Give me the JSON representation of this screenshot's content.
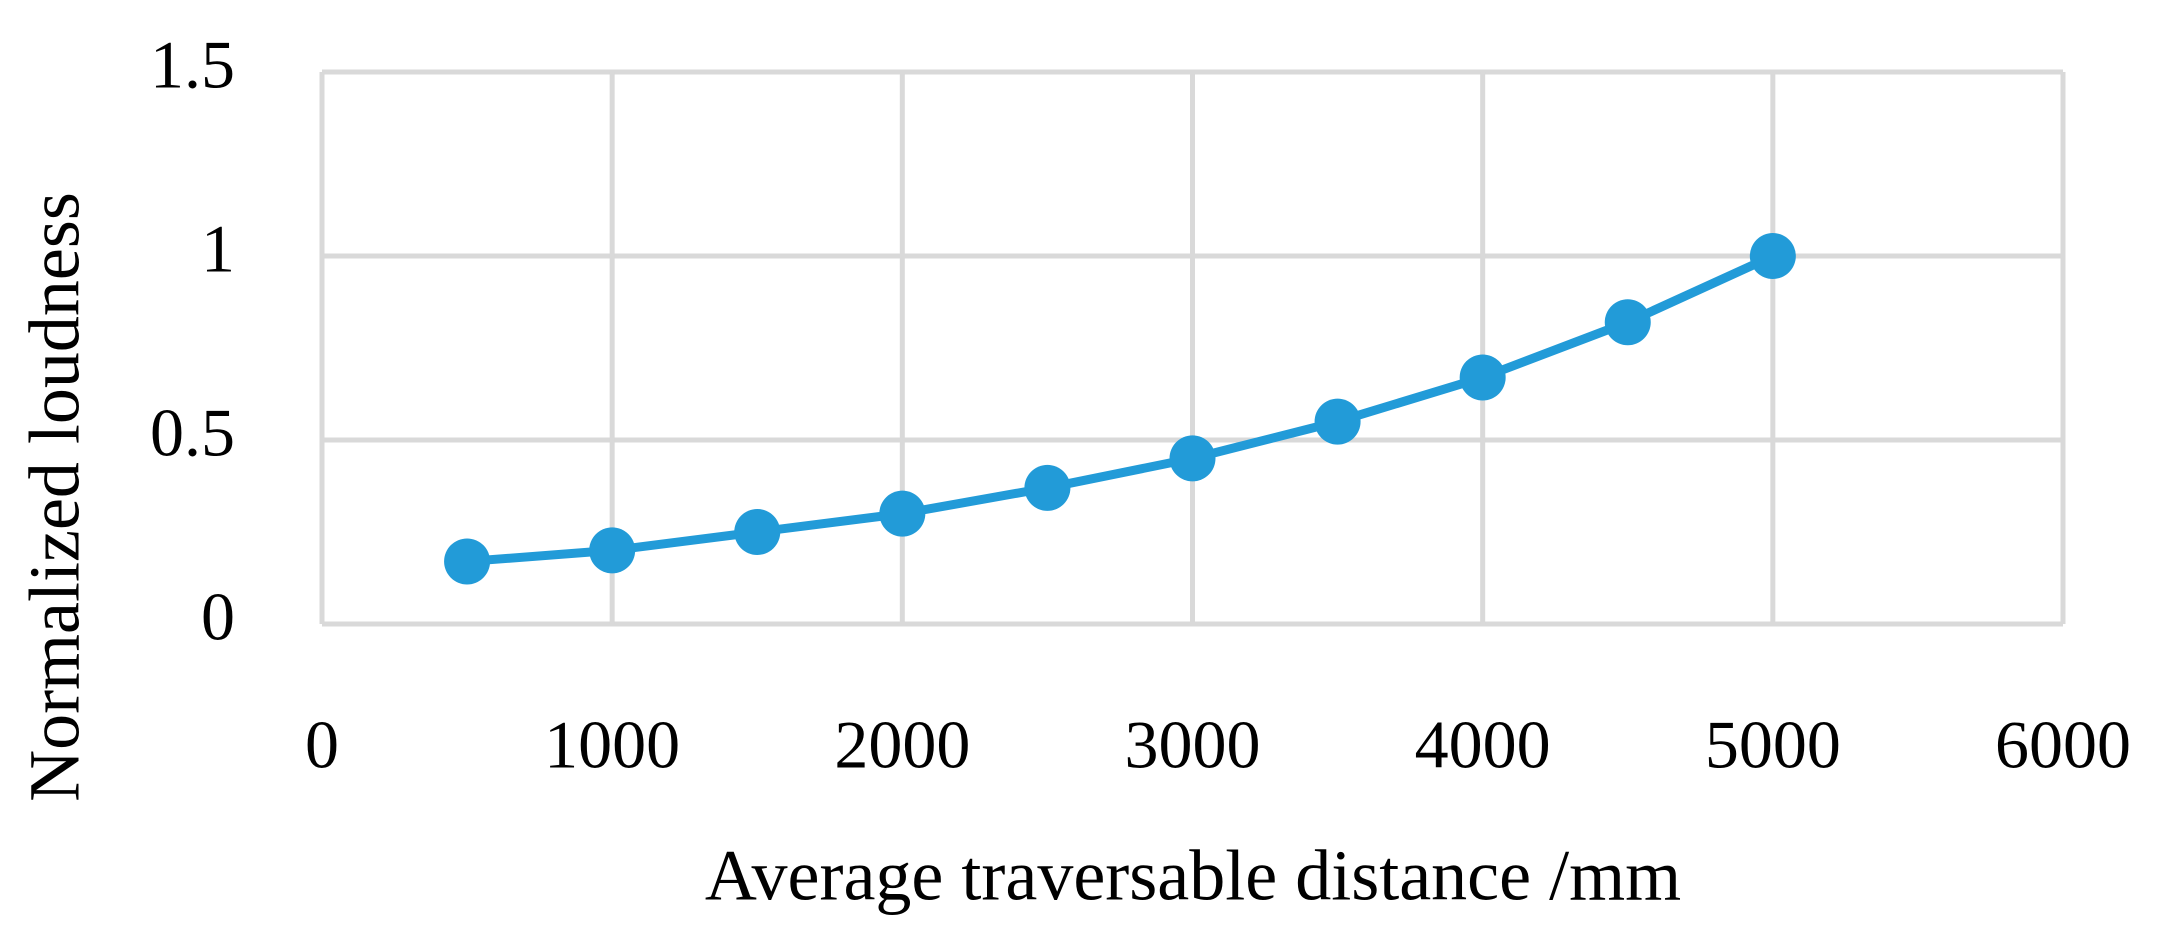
{
  "chart_data": {
    "type": "line",
    "x_label": "Average traversable distance /mm",
    "y_label": "Normalized loudness",
    "x": [
      500,
      1000,
      1500,
      2000,
      2500,
      3000,
      3500,
      4000,
      4500,
      5000
    ],
    "series": [
      {
        "color": "#229bd8",
        "values": [
          0.17,
          0.2,
          0.25,
          0.3,
          0.37,
          0.45,
          0.55,
          0.67,
          0.82,
          1.0
        ]
      }
    ],
    "xlim": [
      0,
      6000
    ],
    "xticks": [
      0,
      1000,
      2000,
      3000,
      4000,
      5000,
      6000
    ],
    "ylim": [
      0,
      1.5
    ],
    "yticks": [
      0,
      0.5,
      1,
      1.5
    ],
    "grid": true,
    "markers": true
  }
}
